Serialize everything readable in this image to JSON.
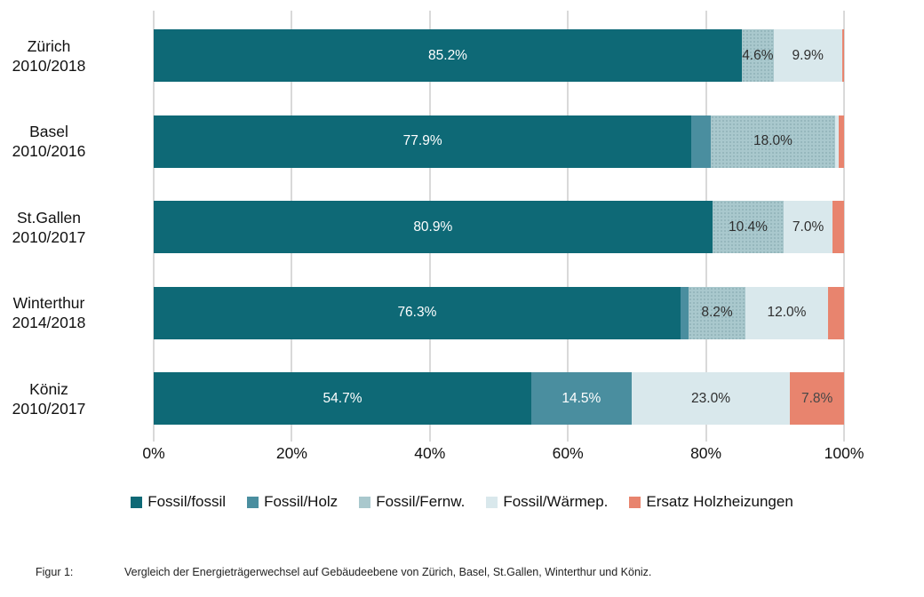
{
  "chart_data": {
    "type": "bar",
    "orientation": "horizontal_stacked",
    "categories": [
      {
        "city": "Zürich",
        "period": "2010/2018"
      },
      {
        "city": "Basel",
        "period": "2010/2016"
      },
      {
        "city": "St.Gallen",
        "period": "2010/2017"
      },
      {
        "city": "Winterthur",
        "period": "2014/2018"
      },
      {
        "city": "Köniz",
        "period": "2010/2017"
      }
    ],
    "series": [
      {
        "name": "Fossil/fossil",
        "color": "#0e6976",
        "label_color": "#ffffff",
        "texture": false,
        "values": [
          85.2,
          77.9,
          80.9,
          76.3,
          54.7
        ]
      },
      {
        "name": "Fossil/Holz",
        "color": "#4a8e9f",
        "label_color": "#ffffff",
        "texture": false,
        "values": [
          0,
          2.8,
          0,
          1.2,
          14.5
        ]
      },
      {
        "name": "Fossil/Fernw.",
        "color": "#a9c8cd",
        "label_color": "#2e2e2e",
        "texture": true,
        "values": [
          4.6,
          18.0,
          10.4,
          8.2,
          0
        ]
      },
      {
        "name": "Fossil/Wärmep.",
        "color": "#d9e8ec",
        "label_color": "#2e2e2e",
        "texture": false,
        "values": [
          9.9,
          0.5,
          7.0,
          12.0,
          23.0
        ]
      },
      {
        "name": "Ersatz Holzheizungen",
        "color": "#e8846e",
        "label_color": "#474747",
        "texture": false,
        "values": [
          0.3,
          0.8,
          1.7,
          2.3,
          7.8
        ]
      }
    ],
    "visible_bar_labels": [
      "85.2%",
      "4.6%",
      "9.9%",
      "77.9%",
      "18.0%",
      "80.9%",
      "10.4%",
      "7.0%",
      "76.3%",
      "8.2%",
      "12.0%",
      "54.7%",
      "14.5%",
      "23.0%",
      "7.8%"
    ],
    "label_min_pct": 4.0,
    "x_axis": {
      "ticks": [
        "0%",
        "20%",
        "40%",
        "60%",
        "80%",
        "100%"
      ],
      "range": [
        0,
        100
      ]
    },
    "grid": "vertical",
    "legend_position": "bottom",
    "gridline_color": "#d9d9d9"
  },
  "caption": {
    "label": "Figur 1:",
    "text": "Vergleich der Energieträgerwechsel auf Gebäudeebene von Zürich, Basel, St.Gallen, Winterthur und Köniz."
  }
}
